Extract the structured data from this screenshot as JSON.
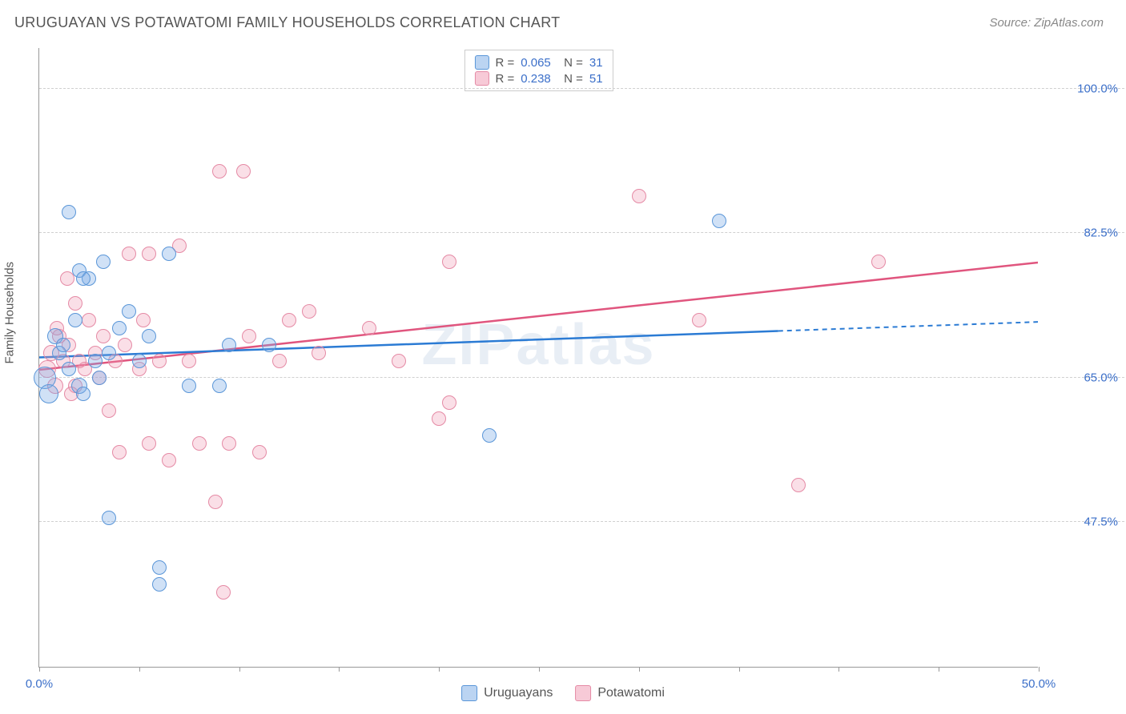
{
  "title": "URUGUAYAN VS POTAWATOMI FAMILY HOUSEHOLDS CORRELATION CHART",
  "source": "Source: ZipAtlas.com",
  "watermark": "ZIPatlas",
  "yaxis_title": "Family Households",
  "chart": {
    "type": "scatter",
    "xlim": [
      0,
      50
    ],
    "ylim": [
      30,
      105
    ],
    "xticks": [
      0,
      5,
      10,
      15,
      20,
      25,
      30,
      35,
      40,
      45,
      50
    ],
    "xticklabels": {
      "0": "0.0%",
      "50": "50.0%"
    },
    "yticks": [
      47.5,
      65.0,
      82.5,
      100.0
    ],
    "yticklabels": [
      "47.5%",
      "65.0%",
      "82.5%",
      "100.0%"
    ],
    "background": "#ffffff",
    "grid_color": "#d0d0d0",
    "axis_color": "#999999",
    "series": {
      "uruguayans": {
        "label": "Uruguayans",
        "color_fill": "rgba(120,170,230,0.35)",
        "color_border": "#5a96d8",
        "trend_color": "#2b7bd4",
        "trend_start": [
          0,
          67.5
        ],
        "trend_solid_end": [
          37,
          70.7
        ],
        "trend_dash_end": [
          50,
          71.8
        ],
        "R": "0.065",
        "N": "31",
        "points": [
          {
            "x": 0.3,
            "y": 65,
            "r": 14
          },
          {
            "x": 0.5,
            "y": 63,
            "r": 12
          },
          {
            "x": 0.8,
            "y": 70,
            "r": 10
          },
          {
            "x": 1.0,
            "y": 68,
            "r": 9
          },
          {
            "x": 1.2,
            "y": 69,
            "r": 9
          },
          {
            "x": 1.5,
            "y": 85,
            "r": 9
          },
          {
            "x": 1.5,
            "y": 66,
            "r": 9
          },
          {
            "x": 1.8,
            "y": 72,
            "r": 9
          },
          {
            "x": 2.0,
            "y": 64,
            "r": 10
          },
          {
            "x": 2.0,
            "y": 78,
            "r": 9
          },
          {
            "x": 2.2,
            "y": 63,
            "r": 9
          },
          {
            "x": 2.5,
            "y": 77,
            "r": 9
          },
          {
            "x": 2.8,
            "y": 67,
            "r": 9
          },
          {
            "x": 3.2,
            "y": 79,
            "r": 9
          },
          {
            "x": 3.0,
            "y": 65,
            "r": 9
          },
          {
            "x": 3.5,
            "y": 68,
            "r": 9
          },
          {
            "x": 3.5,
            "y": 48,
            "r": 9
          },
          {
            "x": 4.0,
            "y": 71,
            "r": 9
          },
          {
            "x": 4.5,
            "y": 73,
            "r": 9
          },
          {
            "x": 5.0,
            "y": 67,
            "r": 9
          },
          {
            "x": 5.5,
            "y": 70,
            "r": 9
          },
          {
            "x": 6.5,
            "y": 80,
            "r": 9
          },
          {
            "x": 6.0,
            "y": 42,
            "r": 9
          },
          {
            "x": 7.5,
            "y": 64,
            "r": 9
          },
          {
            "x": 6.0,
            "y": 40,
            "r": 9
          },
          {
            "x": 9.0,
            "y": 64,
            "r": 9
          },
          {
            "x": 9.5,
            "y": 69,
            "r": 9
          },
          {
            "x": 11.5,
            "y": 69,
            "r": 9
          },
          {
            "x": 22.5,
            "y": 58,
            "r": 9
          },
          {
            "x": 34.0,
            "y": 84,
            "r": 9
          },
          {
            "x": 2.2,
            "y": 77,
            "r": 9
          }
        ]
      },
      "potawatomi": {
        "label": "Potawatomi",
        "color_fill": "rgba(240,150,175,0.30)",
        "color_border": "#e58aa5",
        "trend_color": "#e0557e",
        "trend_start": [
          0,
          66.0
        ],
        "trend_end": [
          50,
          79.0
        ],
        "R": "0.238",
        "N": "51",
        "points": [
          {
            "x": 0.4,
            "y": 66,
            "r": 11
          },
          {
            "x": 0.6,
            "y": 68,
            "r": 10
          },
          {
            "x": 0.8,
            "y": 64,
            "r": 10
          },
          {
            "x": 1.0,
            "y": 70,
            "r": 9
          },
          {
            "x": 1.2,
            "y": 67,
            "r": 9
          },
          {
            "x": 1.4,
            "y": 77,
            "r": 9
          },
          {
            "x": 1.5,
            "y": 69,
            "r": 9
          },
          {
            "x": 1.8,
            "y": 74,
            "r": 9
          },
          {
            "x": 1.8,
            "y": 64,
            "r": 9
          },
          {
            "x": 2.0,
            "y": 67,
            "r": 9
          },
          {
            "x": 2.3,
            "y": 66,
            "r": 9
          },
          {
            "x": 2.5,
            "y": 72,
            "r": 9
          },
          {
            "x": 2.8,
            "y": 68,
            "r": 9
          },
          {
            "x": 3.0,
            "y": 65,
            "r": 9
          },
          {
            "x": 3.2,
            "y": 70,
            "r": 9
          },
          {
            "x": 3.5,
            "y": 61,
            "r": 9
          },
          {
            "x": 3.8,
            "y": 67,
            "r": 9
          },
          {
            "x": 4.0,
            "y": 56,
            "r": 9
          },
          {
            "x": 4.3,
            "y": 69,
            "r": 9
          },
          {
            "x": 4.5,
            "y": 80,
            "r": 9
          },
          {
            "x": 5.0,
            "y": 66,
            "r": 9
          },
          {
            "x": 5.2,
            "y": 72,
            "r": 9
          },
          {
            "x": 5.5,
            "y": 57,
            "r": 9
          },
          {
            "x": 5.5,
            "y": 80,
            "r": 9
          },
          {
            "x": 6.0,
            "y": 67,
            "r": 9
          },
          {
            "x": 6.5,
            "y": 55,
            "r": 9
          },
          {
            "x": 7.0,
            "y": 81,
            "r": 9
          },
          {
            "x": 7.5,
            "y": 67,
            "r": 9
          },
          {
            "x": 8.0,
            "y": 57,
            "r": 9
          },
          {
            "x": 8.8,
            "y": 50,
            "r": 9
          },
          {
            "x": 9.0,
            "y": 90,
            "r": 9
          },
          {
            "x": 9.5,
            "y": 57,
            "r": 9
          },
          {
            "x": 9.2,
            "y": 39,
            "r": 9
          },
          {
            "x": 10.2,
            "y": 90,
            "r": 9
          },
          {
            "x": 10.5,
            "y": 70,
            "r": 9
          },
          {
            "x": 11.0,
            "y": 56,
            "r": 9
          },
          {
            "x": 12.0,
            "y": 67,
            "r": 9
          },
          {
            "x": 12.5,
            "y": 72,
            "r": 9
          },
          {
            "x": 13.5,
            "y": 73,
            "r": 9
          },
          {
            "x": 14.0,
            "y": 68,
            "r": 9
          },
          {
            "x": 16.5,
            "y": 71,
            "r": 9
          },
          {
            "x": 18.0,
            "y": 67,
            "r": 9
          },
          {
            "x": 20.0,
            "y": 60,
            "r": 9
          },
          {
            "x": 20.5,
            "y": 62,
            "r": 9
          },
          {
            "x": 20.5,
            "y": 79,
            "r": 9
          },
          {
            "x": 30.0,
            "y": 87,
            "r": 9
          },
          {
            "x": 33.0,
            "y": 72,
            "r": 9
          },
          {
            "x": 38.0,
            "y": 52,
            "r": 9
          },
          {
            "x": 42.0,
            "y": 79,
            "r": 9
          },
          {
            "x": 1.6,
            "y": 63,
            "r": 9
          },
          {
            "x": 0.9,
            "y": 71,
            "r": 9
          }
        ]
      }
    }
  },
  "legend_top": [
    {
      "color": "blue",
      "R": "0.065",
      "N": "31"
    },
    {
      "color": "pink",
      "R": "0.238",
      "N": "51"
    }
  ],
  "legend_bottom": [
    {
      "color": "blue",
      "label": "Uruguayans"
    },
    {
      "color": "pink",
      "label": "Potawatomi"
    }
  ]
}
